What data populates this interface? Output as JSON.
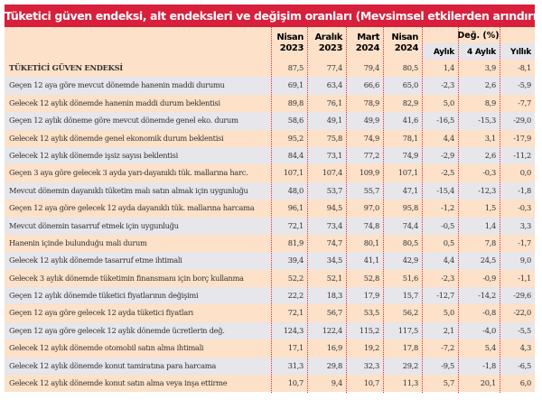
{
  "title": "Tüketici güven endeksi, alt endeksleri ve değişim oranları (Mevsimsel etkilerden arındırılmış)",
  "columns": [
    {
      "l1": "Nisan",
      "l2": "2023"
    },
    {
      "l1": "Aralık",
      "l2": "2023"
    },
    {
      "l1": "Mart",
      "l2": "2024"
    },
    {
      "l1": "Nisan",
      "l2": "2024"
    }
  ],
  "change_header": "Değ. (%)",
  "change_columns": [
    "Aylık",
    "4 Aylık",
    "Yıllık"
  ],
  "rows": [
    {
      "label": "TÜKETİCİ GÜVEN ENDEKSİ",
      "values": [
        "87,5",
        "77,4",
        "79,4",
        "80,5",
        "1,4",
        "3,9",
        "-8,1"
      ]
    },
    {
      "label": "Geçen 12 aya göre mevcut dönemde hanenin maddi durumu",
      "values": [
        "69,1",
        "63,4",
        "66,6",
        "65,0",
        "-2,3",
        "2,6",
        "-5,9"
      ]
    },
    {
      "label": "Gelecek 12 aylık dönemde hanenin maddi durum beklentisi",
      "values": [
        "89,8",
        "76,1",
        "78,9",
        "82,9",
        "5,0",
        "8,9",
        "-7,7"
      ]
    },
    {
      "label": "Geçen 12 aylık döneme göre mevcut dönemde genel eko. durum",
      "values": [
        "58,6",
        "49,1",
        "49,9",
        "41,6",
        "-16,5",
        "-15,3",
        "-29,0"
      ]
    },
    {
      "label": "Gelecek 12 aylık dönemde genel ekonomik durum beklentisi",
      "values": [
        "95,2",
        "75,8",
        "74,9",
        "78,1",
        "4,4",
        "3,1",
        "-17,9"
      ]
    },
    {
      "label": "Gelecek 12 aylık dönemde işsiz sayısı beklentisi",
      "values": [
        "84,4",
        "73,1",
        "77,2",
        "74,9",
        "-2,9",
        "2,6",
        "-11,2"
      ]
    },
    {
      "label": "Geçen 3 aya göre gelecek 3 ayda yarı-dayanıklı tük. mallarına harc.",
      "values": [
        "107,1",
        "107,4",
        "109,9",
        "107,1",
        "-2,5",
        "-0,3",
        "0,0"
      ]
    },
    {
      "label": "Mevcut dönemin dayanıklı tüketim malı satın almak için uygunluğu",
      "values": [
        "48,0",
        "53,7",
        "55,7",
        "47,1",
        "-15,4",
        "-12,3",
        "-1,8"
      ]
    },
    {
      "label": "Geçen 12 aya göre gelecek 12 ayda dayanıklı tük. mallarına harcama",
      "values": [
        "96,1",
        "94,5",
        "97,0",
        "95,8",
        "-1,2",
        "1,5",
        "-0,3"
      ]
    },
    {
      "label": "Mevcut dönemin tasarruf etmek için uygunluğu",
      "values": [
        "72,1",
        "73,4",
        "74,8",
        "74,4",
        "-0,5",
        "1,4",
        "3,3"
      ]
    },
    {
      "label": "Hanenin içinde bulunduğu mali durum",
      "values": [
        "81,9",
        "74,7",
        "80,1",
        "80,5",
        "0,5",
        "7,8",
        "-1,7"
      ]
    },
    {
      "label": "Gelecek 12 aylık dönemde tasarruf etme ihtimali",
      "values": [
        "39,4",
        "34,5",
        "41,1",
        "42,9",
        "4,4",
        "24,5",
        "9,0"
      ]
    },
    {
      "label": "Gelecek 3 aylık dönemde tüketimin finansmanı için borç kullanma",
      "values": [
        "52,2",
        "52,1",
        "52,8",
        "51,6",
        "-2,3",
        "-0,9",
        "-1,1"
      ]
    },
    {
      "label": "Geçen 12 aylık dönemde tüketici fiyatlarının değişimi",
      "values": [
        "22,2",
        "18,3",
        "17,9",
        "15,7",
        "-12,7",
        "-14,2",
        "-29,6"
      ]
    },
    {
      "label": "Geçen 12 aya göre gelecek 12 ayda tüketici fiyatları",
      "values": [
        "72,1",
        "56,7",
        "53,5",
        "56,2",
        "5,0",
        "-0,8",
        "-22,0"
      ]
    },
    {
      "label": "Geçen 12 aya göre gelecek 12 aylık dönemde ücretlerin değ.",
      "values": [
        "124,3",
        "122,4",
        "115,2",
        "117,5",
        "2,1",
        "-4,0",
        "-5,5"
      ]
    },
    {
      "label": "Gelecek 12 aylık dönemde otomobil satın alma ihtimali",
      "values": [
        "17,1",
        "16,9",
        "19,2",
        "17,8",
        "-7,2",
        "5,4",
        "4,3"
      ]
    },
    {
      "label": "Gelecek 12 aylık dönemde konut tamiratına para harcama",
      "values": [
        "31,3",
        "29,8",
        "32,3",
        "29,2",
        "-9,5",
        "-1,8",
        "-6,5"
      ]
    },
    {
      "label": "Gelecek 12 aylık dönemde konut satın alma veya inşa ettirme",
      "values": [
        "10,7",
        "9,4",
        "10,7",
        "11,3",
        "5,7",
        "20,1",
        "6,0"
      ]
    }
  ]
}
